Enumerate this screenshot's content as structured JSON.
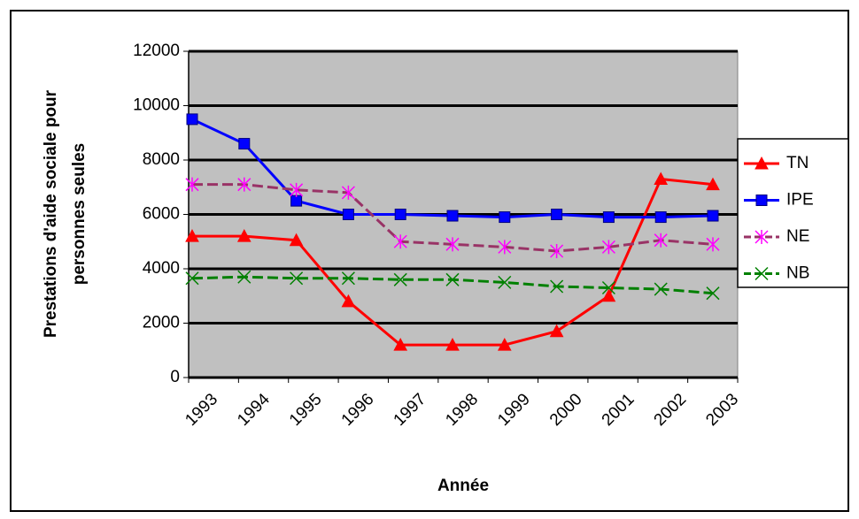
{
  "chart_data": {
    "type": "line",
    "x_label": "Année",
    "y_label": [
      "Prestations d'aide sociale pour",
      "personnes seules"
    ],
    "categories": [
      "1993",
      "1994",
      "1995",
      "1996",
      "1997",
      "1998",
      "1999",
      "2000",
      "2001",
      "2002",
      "2003"
    ],
    "series": [
      {
        "name": "TN",
        "color": "#ff0000",
        "marker": "triangle",
        "dash": false,
        "values": [
          5200,
          5200,
          5050,
          2800,
          1200,
          1200,
          1200,
          1700,
          3000,
          7300,
          7100
        ]
      },
      {
        "name": "IPE",
        "color": "#0000ff",
        "marker": "square",
        "dash": false,
        "values": [
          9500,
          8600,
          6500,
          6000,
          6000,
          5950,
          5900,
          6000,
          5900,
          5900,
          5950
        ]
      },
      {
        "name": "NE",
        "color": "#993366",
        "marker_color": "#ff00ff",
        "marker": "star",
        "dash": true,
        "values": [
          7100,
          7100,
          6900,
          6800,
          5000,
          4900,
          4800,
          4650,
          4800,
          5050,
          4900
        ]
      },
      {
        "name": "NB",
        "color": "#008000",
        "marker": "x",
        "dash": true,
        "values": [
          3650,
          3700,
          3650,
          3650,
          3600,
          3600,
          3500,
          3350,
          3300,
          3250,
          3100
        ]
      }
    ],
    "ylim": [
      0,
      12000
    ],
    "yticks": [
      0,
      2000,
      4000,
      6000,
      8000,
      10000,
      12000
    ],
    "grid": true,
    "legend": "right"
  }
}
